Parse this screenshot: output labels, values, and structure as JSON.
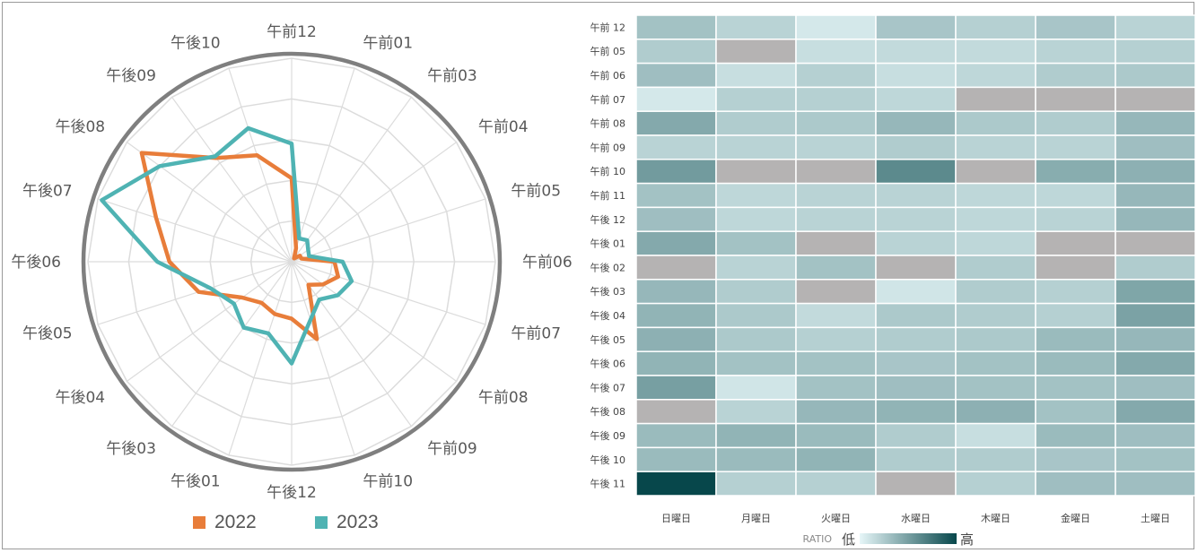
{
  "chart_data": [
    {
      "type": "radar",
      "categories": [
        "午前12",
        "午前01",
        "午前03",
        "午前04",
        "午前05",
        "午前06",
        "午前07",
        "午前08",
        "午前09",
        "午前10",
        "午後12",
        "午後01",
        "午後03",
        "午後04",
        "午後05",
        "午後06",
        "午後07",
        "午後08",
        "午後09",
        "午後10"
      ],
      "series": [
        {
          "name": "2022",
          "color": "#e87d3a",
          "values": [
            0.41,
            0.07,
            0.02,
            0.05,
            0.05,
            0.21,
            0.24,
            0.19,
            0.14,
            0.4,
            0.28,
            0.27,
            0.25,
            0.3,
            0.48,
            0.6,
            0.7,
            0.91,
            0.63,
            0.55
          ]
        },
        {
          "name": "2023",
          "color": "#4fb3b3",
          "values": [
            0.58,
            0.12,
            0.13,
            0.1,
            0.09,
            0.25,
            0.31,
            0.28,
            0.23,
            0.3,
            0.5,
            0.37,
            0.4,
            0.35,
            0.42,
            0.66,
            0.98,
            0.8,
            0.64,
            0.69
          ]
        }
      ],
      "range": [
        0,
        1
      ],
      "grid": true,
      "legend_position": "bottom"
    },
    {
      "type": "heatmap",
      "rows": [
        "午前 12",
        "午前 05",
        "午前 06",
        "午前 07",
        "午前 08",
        "午前 09",
        "午前 10",
        "午前 11",
        "午後 12",
        "午後 01",
        "午後 02",
        "午後 03",
        "午後 04",
        "午後 05",
        "午後 06",
        "午後 07",
        "午後 08",
        "午後 09",
        "午後 10",
        "午後 11"
      ],
      "columns": [
        "日曜日",
        "月曜日",
        "火曜日",
        "水曜日",
        "木曜日",
        "金曜日",
        "土曜日"
      ],
      "values": [
        [
          0.3,
          0.2,
          0.08,
          0.28,
          0.22,
          0.28,
          0.2
        ],
        [
          0.24,
          null,
          0.14,
          0.16,
          0.16,
          0.2,
          0.22
        ],
        [
          0.32,
          0.14,
          0.22,
          0.14,
          0.18,
          0.24,
          0.26
        ],
        [
          0.08,
          0.22,
          0.22,
          0.18,
          null,
          null,
          null
        ],
        [
          0.44,
          0.24,
          0.26,
          0.36,
          0.26,
          0.24,
          0.36
        ],
        [
          0.2,
          0.2,
          0.2,
          0.24,
          0.2,
          0.2,
          0.32
        ],
        [
          0.52,
          null,
          null,
          0.62,
          null,
          0.42,
          0.4
        ],
        [
          0.3,
          0.18,
          0.2,
          0.2,
          0.18,
          0.18,
          0.36
        ],
        [
          0.32,
          0.18,
          0.2,
          0.2,
          0.18,
          0.2,
          0.36
        ],
        [
          0.44,
          0.3,
          null,
          0.2,
          0.18,
          null,
          null
        ],
        [
          null,
          0.2,
          0.3,
          null,
          0.24,
          null,
          0.24
        ],
        [
          0.36,
          0.24,
          null,
          0.1,
          0.24,
          0.22,
          0.46
        ],
        [
          0.38,
          0.26,
          0.16,
          0.26,
          0.24,
          0.22,
          0.48
        ],
        [
          0.4,
          0.26,
          0.22,
          0.24,
          0.26,
          0.34,
          0.36
        ],
        [
          0.38,
          0.3,
          0.3,
          0.28,
          0.3,
          0.34,
          0.44
        ],
        [
          0.5,
          0.1,
          0.3,
          0.32,
          0.3,
          0.3,
          0.32
        ],
        [
          null,
          0.2,
          0.36,
          0.38,
          0.4,
          0.3,
          0.44
        ],
        [
          0.34,
          0.38,
          0.34,
          0.24,
          0.14,
          0.34,
          0.32
        ],
        [
          0.34,
          0.34,
          0.38,
          0.24,
          0.24,
          0.28,
          0.3
        ],
        [
          1.0,
          0.22,
          0.22,
          null,
          0.22,
          0.32,
          0.32
        ]
      ],
      "missing_color": "#b5b3b3",
      "color_scale": {
        "low": "#e6f6f8",
        "high": "#07474b"
      },
      "legend": {
        "title": "RATIO",
        "low": "低",
        "high": "高"
      }
    }
  ]
}
